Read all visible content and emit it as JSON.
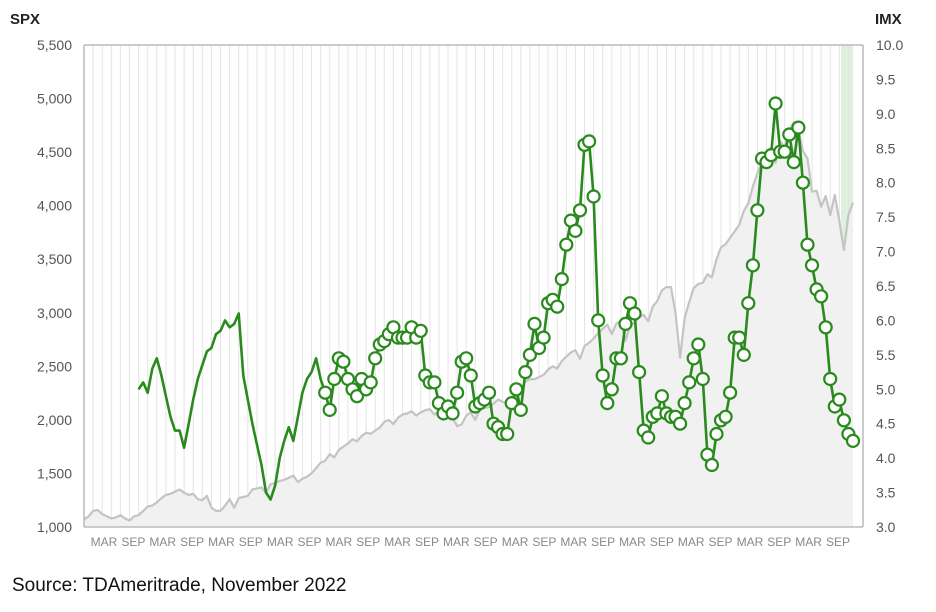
{
  "chart_data": {
    "type": "line",
    "title": "",
    "left_axis": {
      "label": "SPX",
      "ylim": [
        1000,
        5500
      ],
      "ticks": [
        "1,000",
        "1,500",
        "2,000",
        "2,500",
        "3,000",
        "3,500",
        "4,000",
        "4,500",
        "5,000",
        "5,500"
      ]
    },
    "right_axis": {
      "label": "IMX",
      "ylim": [
        3.0,
        10.0
      ],
      "ticks": [
        "3.0",
        "3.5",
        "4.0",
        "4.5",
        "5.0",
        "5.5",
        "6.0",
        "6.5",
        "7.0",
        "7.5",
        "8.0",
        "8.5",
        "9.0",
        "9.5",
        "10.0"
      ]
    },
    "x_tick_labels": [
      "MAR",
      "SEP",
      "MAR",
      "SEP",
      "MAR",
      "SEP",
      "MAR",
      "SEP",
      "MAR",
      "SEP",
      "MAR",
      "SEP",
      "MAR",
      "SEP",
      "MAR",
      "SEP",
      "MAR",
      "SEP",
      "MAR",
      "SEP",
      "MAR",
      "SEP",
      "MAR",
      "SEP",
      "MAR",
      "SEP"
    ],
    "x_unit": "months since start",
    "grid": "vertical",
    "legend": "none",
    "colors": {
      "spx": "#c4c4c4",
      "imx": "#2a8a1e",
      "recent_highlight": "#d6ecd6"
    },
    "series": [
      {
        "axis": "left",
        "values": [
          1070,
          1100,
          1150,
          1160,
          1120,
          1100,
          1080,
          1090,
          1110,
          1080,
          1060,
          1100,
          1110,
          1150,
          1190,
          1200,
          1230,
          1270,
          1300,
          1310,
          1330,
          1350,
          1320,
          1300,
          1310,
          1260,
          1250,
          1290,
          1180,
          1150,
          1150,
          1200,
          1260,
          1180,
          1270,
          1280,
          1290,
          1350,
          1360,
          1370,
          1320,
          1400,
          1410,
          1430,
          1440,
          1460,
          1480,
          1420,
          1450,
          1470,
          1500,
          1550,
          1600,
          1620,
          1680,
          1650,
          1720,
          1750,
          1780,
          1820,
          1800,
          1850,
          1880,
          1870,
          1900,
          1930,
          1980,
          2000,
          1960,
          2020,
          2050,
          2060,
          2080,
          2040,
          2070,
          2090,
          2100,
          2050,
          2080,
          2100,
          2110,
          2020,
          1940,
          1960,
          2040,
          2070,
          2000,
          2100,
          2110,
          2120,
          2150,
          2190,
          2170,
          2150,
          2170,
          2200,
          2280,
          2360,
          2380,
          2380,
          2400,
          2420,
          2470,
          2500,
          2480,
          2550,
          2590,
          2630,
          2650,
          2570,
          2690,
          2720,
          2760,
          2810,
          2850,
          2890,
          2800,
          2900,
          2920,
          2740,
          2880,
          2910,
          2960,
          2980,
          2920,
          3060,
          3110,
          3210,
          3240,
          3240,
          3000,
          2580,
          2950,
          3100,
          3230,
          3270,
          3280,
          3360,
          3330,
          3500,
          3610,
          3640,
          3700,
          3760,
          3820,
          3950,
          4020,
          4180,
          4300,
          4420,
          4510,
          4540,
          4400,
          4600,
          4550,
          4700,
          4780,
          4700,
          4510,
          4440,
          4130,
          4140,
          3990,
          4090,
          3910,
          4100,
          3860,
          3585,
          3910,
          4030
        ]
      },
      {
        "axis": "right",
        "values_before_markers": [
          5.0,
          5.1,
          4.95,
          5.3,
          5.45,
          5.2,
          4.9,
          4.6,
          4.4,
          4.4,
          4.15,
          4.5,
          4.85,
          5.15,
          5.35,
          5.55,
          5.6,
          5.8,
          5.85,
          6.0,
          5.9,
          5.95,
          6.1,
          5.2,
          4.85,
          4.5,
          4.2,
          3.9,
          3.5,
          3.4,
          3.6,
          4.0,
          4.25,
          4.45,
          4.25,
          4.6,
          4.95,
          5.15,
          5.25,
          5.45,
          5.15
        ],
        "marker_values": [
          4.95,
          4.7,
          5.15,
          5.45,
          5.4,
          5.15,
          5.0,
          4.9,
          5.15,
          5.0,
          5.1,
          5.45,
          5.65,
          5.7,
          5.8,
          5.9,
          5.75,
          5.75,
          5.75,
          5.9,
          5.75,
          5.85,
          5.2,
          5.1,
          5.1,
          4.8,
          4.65,
          4.75,
          4.65,
          4.95,
          5.4,
          5.45,
          5.2,
          4.75,
          4.8,
          4.85,
          4.95,
          4.5,
          4.45,
          4.35,
          4.35,
          4.8,
          5.0,
          4.7,
          5.25,
          5.5,
          5.95,
          5.6,
          5.75,
          6.25,
          6.3,
          6.2,
          6.6,
          7.1,
          7.45,
          7.3,
          7.6,
          8.55,
          8.6,
          7.8,
          6.0,
          5.2,
          4.8,
          5.0,
          5.45,
          5.45,
          5.95,
          6.25,
          6.1,
          5.25,
          4.4,
          4.3,
          4.6,
          4.65,
          4.9,
          4.65,
          4.6,
          4.6,
          4.5,
          4.8,
          5.1,
          5.45,
          5.65,
          5.15,
          4.05,
          3.9,
          4.35,
          4.55,
          4.6,
          4.95,
          5.75,
          5.75,
          5.5,
          6.25,
          6.8,
          7.6,
          8.35,
          8.3,
          8.4,
          9.15,
          8.45,
          8.45,
          8.7,
          8.3,
          8.8,
          8.0,
          7.1,
          6.8,
          6.45,
          6.35,
          5.9,
          5.15,
          4.75,
          4.85,
          4.55,
          4.35,
          4.25
        ]
      }
    ],
    "annotations": []
  },
  "footer": {
    "source": "Source: TDAmeritrade, November 2022"
  }
}
